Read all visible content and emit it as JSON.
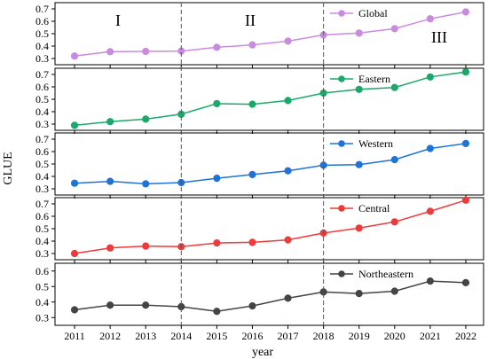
{
  "chart_data": {
    "type": "line",
    "xlabel": "year",
    "ylabel": "GLUE",
    "x": [
      2011,
      2012,
      2013,
      2014,
      2015,
      2016,
      2017,
      2018,
      2019,
      2020,
      2021,
      2022
    ],
    "vlines": [
      2014,
      2018
    ],
    "regions": [
      "I",
      "II",
      "III"
    ],
    "panels": [
      {
        "name": "Global",
        "color": "#c98be0",
        "ylim": [
          0.25,
          0.75
        ],
        "yticks": [
          "0.3",
          "0.4",
          "0.5",
          "0.6",
          "0.7"
        ],
        "values": [
          0.32,
          0.355,
          0.357,
          0.36,
          0.39,
          0.41,
          0.44,
          0.49,
          0.505,
          0.54,
          0.62,
          0.675
        ]
      },
      {
        "name": "Eastern",
        "color": "#1aa86b",
        "ylim": [
          0.25,
          0.75
        ],
        "yticks": [
          "0.3",
          "0.4",
          "0.5",
          "0.6",
          "0.7"
        ],
        "values": [
          0.29,
          0.32,
          0.34,
          0.38,
          0.465,
          0.46,
          0.49,
          0.55,
          0.58,
          0.595,
          0.68,
          0.72
        ]
      },
      {
        "name": "Western",
        "color": "#1e73d8",
        "ylim": [
          0.25,
          0.75
        ],
        "yticks": [
          "0.3",
          "0.4",
          "0.5",
          "0.6",
          "0.7"
        ],
        "values": [
          0.345,
          0.36,
          0.34,
          0.35,
          0.385,
          0.415,
          0.445,
          0.49,
          0.495,
          0.535,
          0.625,
          0.665
        ]
      },
      {
        "name": "Central",
        "color": "#ee3a3a",
        "ylim": [
          0.25,
          0.75
        ],
        "yticks": [
          "0.3",
          "0.4",
          "0.5",
          "0.6",
          "0.7"
        ],
        "values": [
          0.3,
          0.345,
          0.36,
          0.355,
          0.385,
          0.39,
          0.41,
          0.465,
          0.505,
          0.555,
          0.64,
          0.73
        ]
      },
      {
        "name": "Northeastern",
        "color": "#444444",
        "ylim": [
          0.25,
          0.65
        ],
        "yticks": [
          "0.3",
          "0.4",
          "0.5",
          "0.6"
        ],
        "values": [
          0.35,
          0.38,
          0.38,
          0.37,
          0.34,
          0.375,
          0.425,
          0.465,
          0.455,
          0.47,
          0.535,
          0.525
        ]
      }
    ]
  }
}
